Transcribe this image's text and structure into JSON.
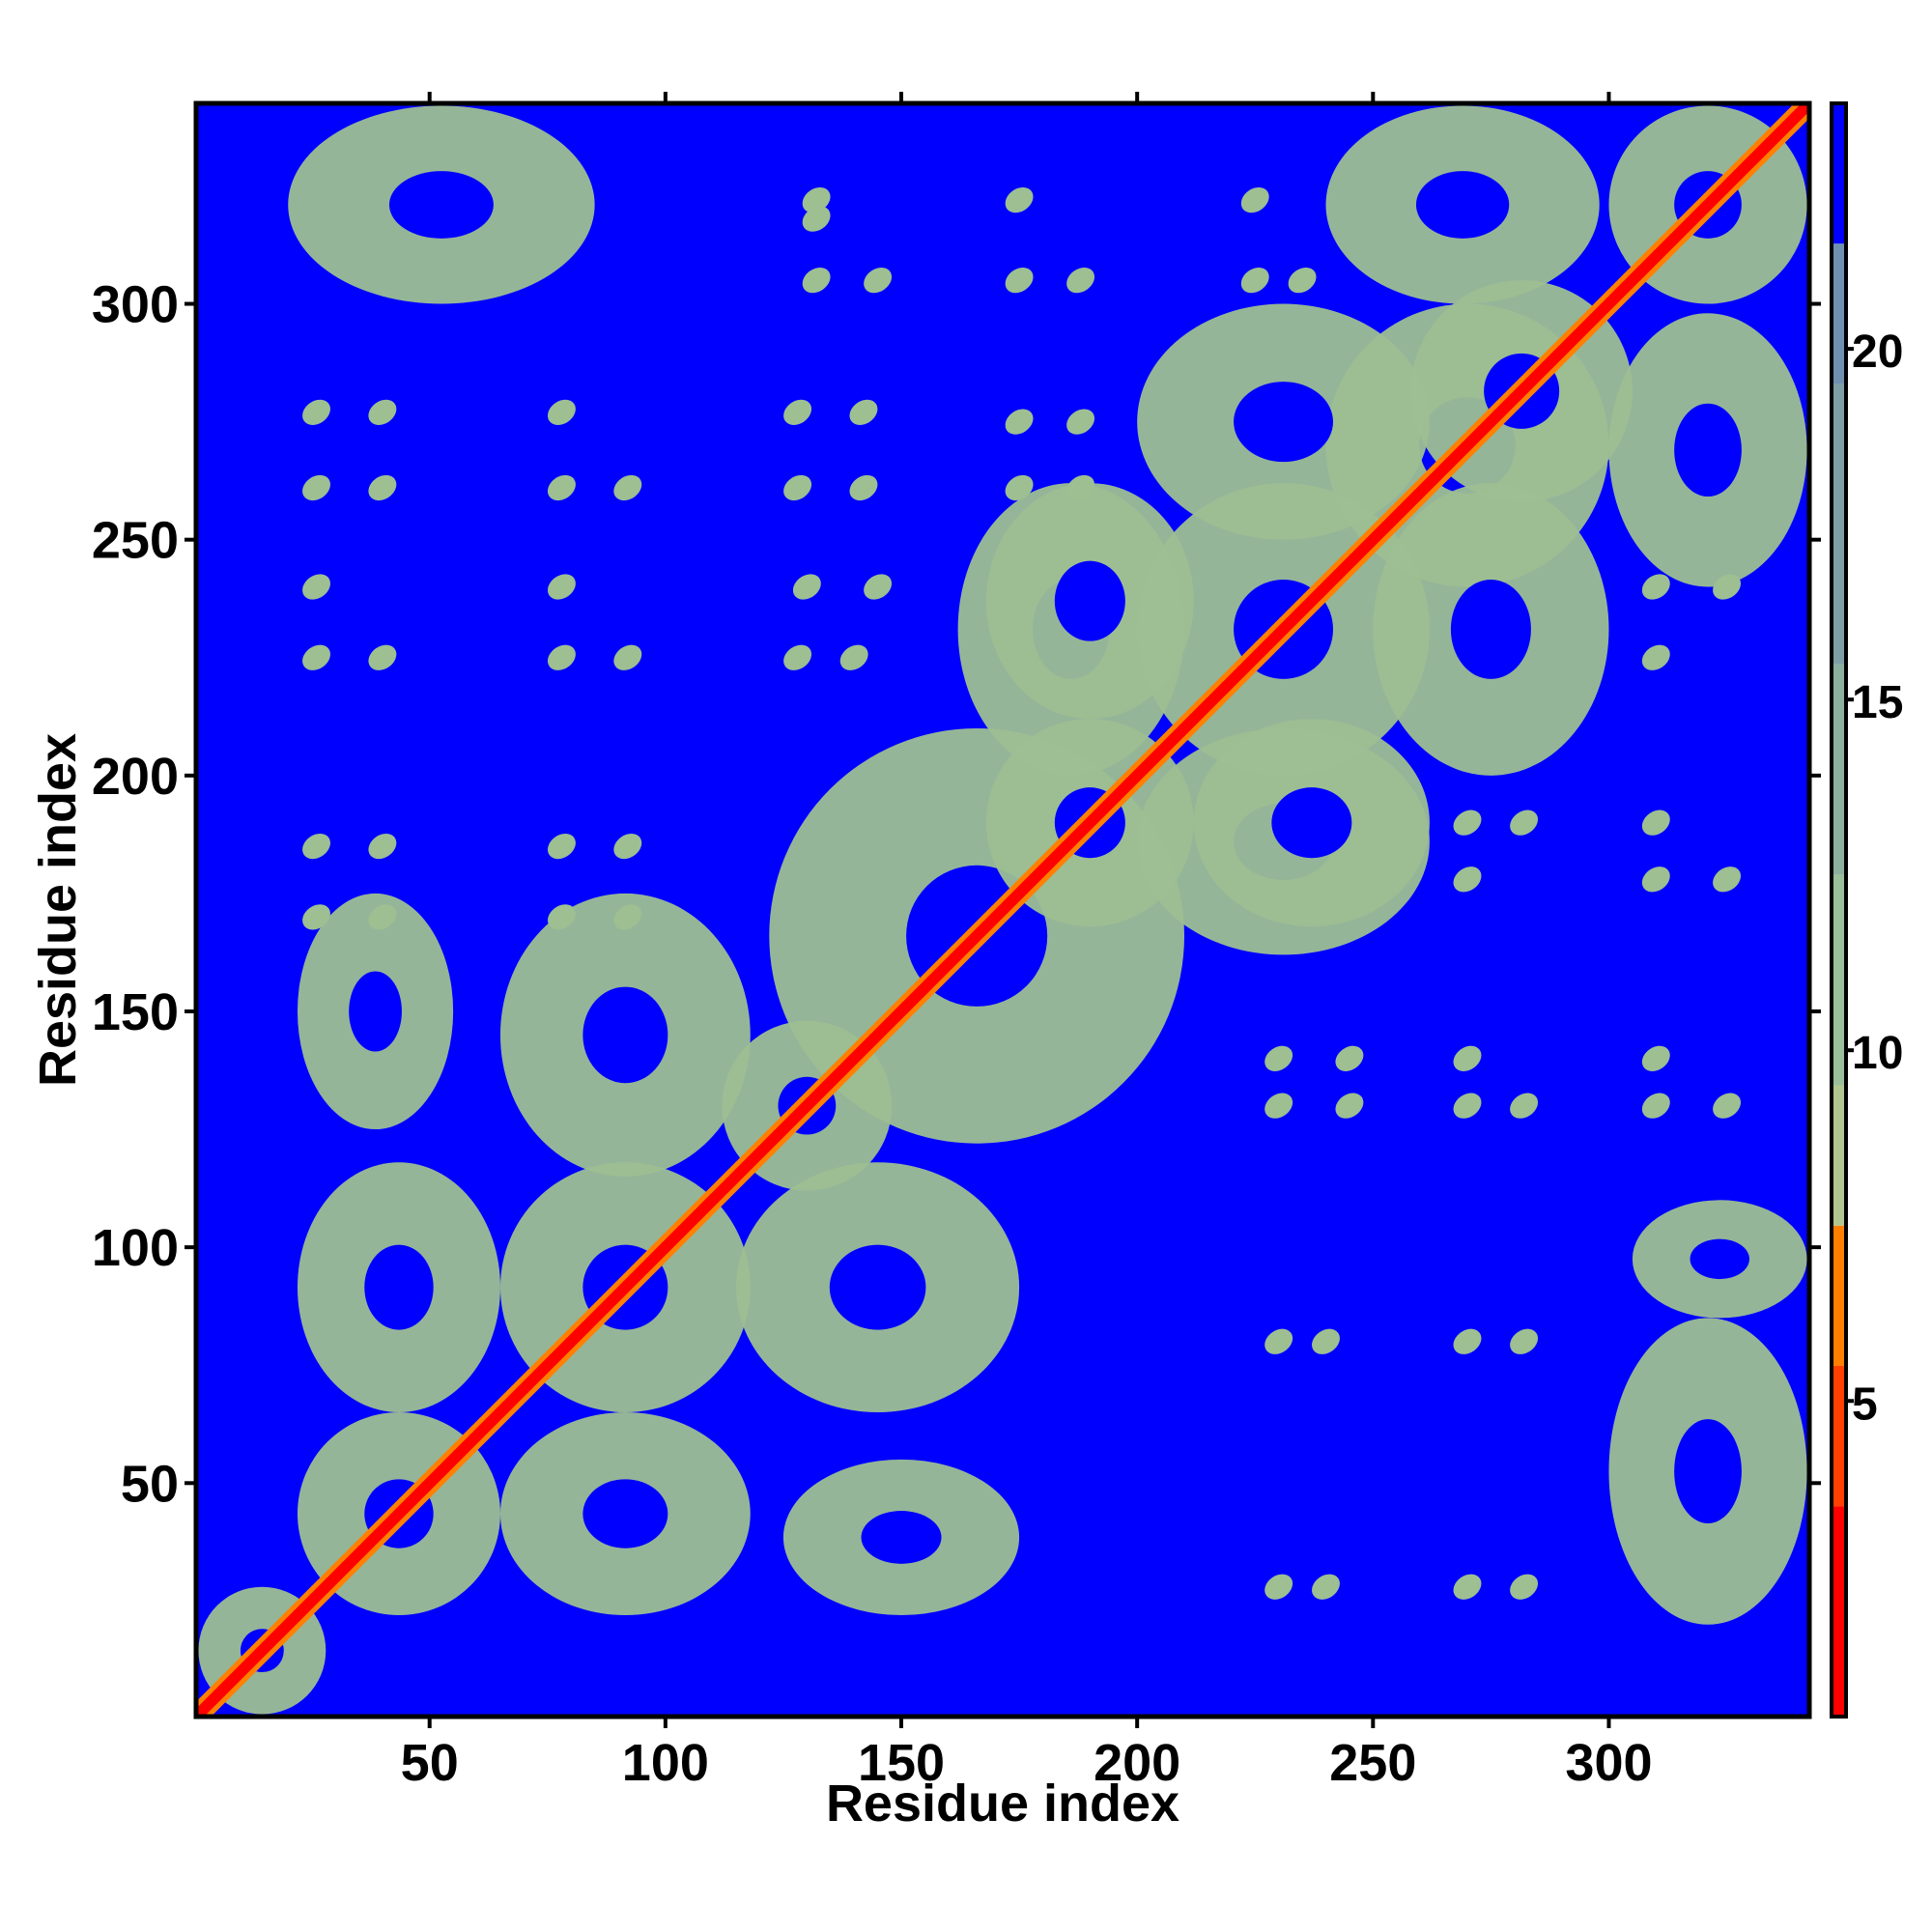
{
  "chart_data": {
    "type": "heatmap",
    "title": "",
    "xlabel": "Residue index",
    "ylabel": "Residue index",
    "xlim": [
      1,
      342
    ],
    "ylim": [
      1,
      342
    ],
    "x_ticks": [
      50,
      100,
      150,
      200,
      250,
      300
    ],
    "y_ticks": [
      50,
      100,
      150,
      200,
      250,
      300
    ],
    "grid": false,
    "colorbar": {
      "placement": "right",
      "range": [
        0.5,
        23.5
      ],
      "ticks": [
        5,
        10,
        15,
        20
      ],
      "colors": [
        {
          "from": 0.5,
          "to": 3.5,
          "color": "#ff0000"
        },
        {
          "from": 3.5,
          "to": 5.5,
          "color": "#ff4000"
        },
        {
          "from": 5.5,
          "to": 7.5,
          "color": "#ff8000"
        },
        {
          "from": 7.5,
          "to": 9.5,
          "color": "#b0c890"
        },
        {
          "from": 9.5,
          "to": 12.5,
          "color": "#9abf9a"
        },
        {
          "from": 12.5,
          "to": 15.5,
          "color": "#8cb09e"
        },
        {
          "from": 15.5,
          "to": 19.5,
          "color": "#7f9fa6"
        },
        {
          "from": 19.5,
          "to": 21.5,
          "color": "#6f90b0"
        },
        {
          "from": 21.5,
          "to": 23.5,
          "color": "#0000ff"
        }
      ]
    },
    "background_color": "#0000ff",
    "diagonal_color": "#ff0000",
    "contact_color": "#9dbf92",
    "center_color": "#0000ff",
    "blocks": [
      {
        "x": [
          1,
          28
        ],
        "y": [
          1,
          28
        ]
      },
      {
        "x": [
          22,
          65
        ],
        "y": [
          22,
          65
        ]
      },
      {
        "x": [
          65,
          118
        ],
        "y": [
          65,
          118
        ]
      },
      {
        "x": [
          112,
          148
        ],
        "y": [
          112,
          148
        ]
      },
      {
        "x": [
          122,
          210
        ],
        "y": [
          122,
          210
        ]
      },
      {
        "x": [
          168,
          212
        ],
        "y": [
          168,
          212
        ]
      },
      {
        "x": [
          200,
          262
        ],
        "y": [
          200,
          262
        ]
      },
      {
        "x": [
          240,
          300
        ],
        "y": [
          240,
          300
        ]
      },
      {
        "x": [
          258,
          305
        ],
        "y": [
          258,
          305
        ]
      },
      {
        "x": [
          300,
          342
        ],
        "y": [
          300,
          342
        ]
      },
      {
        "x": [
          65,
          118
        ],
        "y": [
          22,
          65
        ]
      },
      {
        "x": [
          22,
          65
        ],
        "y": [
          65,
          118
        ]
      },
      {
        "x": [
          115,
          175
        ],
        "y": [
          65,
          118
        ]
      },
      {
        "x": [
          65,
          118
        ],
        "y": [
          115,
          175
        ]
      },
      {
        "x": [
          22,
          55
        ],
        "y": [
          125,
          175
        ]
      },
      {
        "x": [
          125,
          175
        ],
        "y": [
          22,
          55
        ]
      },
      {
        "x": [
          200,
          262
        ],
        "y": [
          162,
          210
        ]
      },
      {
        "x": [
          162,
          210
        ],
        "y": [
          200,
          262
        ]
      },
      {
        "x": [
          168,
          212
        ],
        "y": [
          212,
          262
        ]
      },
      {
        "x": [
          212,
          262
        ],
        "y": [
          168,
          212
        ]
      },
      {
        "x": [
          200,
          262
        ],
        "y": [
          250,
          300
        ]
      },
      {
        "x": [
          250,
          300
        ],
        "y": [
          200,
          262
        ]
      },
      {
        "x": [
          300,
          342
        ],
        "y": [
          240,
          298
        ]
      },
      {
        "x": [
          240,
          298
        ],
        "y": [
          300,
          342
        ]
      },
      {
        "x": [
          20,
          85
        ],
        "y": [
          300,
          342
        ]
      },
      {
        "x": [
          300,
          342
        ],
        "y": [
          20,
          85
        ]
      },
      {
        "x": [
          305,
          342
        ],
        "y": [
          85,
          110
        ]
      }
    ],
    "spots": [
      {
        "x": 26,
        "y": 261
      },
      {
        "x": 26,
        "y": 277
      },
      {
        "x": 40,
        "y": 277
      },
      {
        "x": 40,
        "y": 261
      },
      {
        "x": 26,
        "y": 225
      },
      {
        "x": 26,
        "y": 240
      },
      {
        "x": 40,
        "y": 225
      },
      {
        "x": 26,
        "y": 170
      },
      {
        "x": 26,
        "y": 185
      },
      {
        "x": 40,
        "y": 170
      },
      {
        "x": 40,
        "y": 185
      },
      {
        "x": 78,
        "y": 261
      },
      {
        "x": 78,
        "y": 277
      },
      {
        "x": 92,
        "y": 261
      },
      {
        "x": 78,
        "y": 225
      },
      {
        "x": 78,
        "y": 240
      },
      {
        "x": 92,
        "y": 225
      },
      {
        "x": 78,
        "y": 170
      },
      {
        "x": 78,
        "y": 185
      },
      {
        "x": 92,
        "y": 170
      },
      {
        "x": 92,
        "y": 185
      },
      {
        "x": 132,
        "y": 305
      },
      {
        "x": 132,
        "y": 318
      },
      {
        "x": 145,
        "y": 305
      },
      {
        "x": 132,
        "y": 322
      },
      {
        "x": 128,
        "y": 261
      },
      {
        "x": 128,
        "y": 277
      },
      {
        "x": 142,
        "y": 261
      },
      {
        "x": 142,
        "y": 277
      },
      {
        "x": 128,
        "y": 225
      },
      {
        "x": 140,
        "y": 225
      },
      {
        "x": 130,
        "y": 240
      },
      {
        "x": 145,
        "y": 240
      },
      {
        "x": 175,
        "y": 305
      },
      {
        "x": 175,
        "y": 322
      },
      {
        "x": 188,
        "y": 305
      },
      {
        "x": 175,
        "y": 261
      },
      {
        "x": 175,
        "y": 275
      },
      {
        "x": 188,
        "y": 261
      },
      {
        "x": 188,
        "y": 275
      },
      {
        "x": 225,
        "y": 305
      },
      {
        "x": 225,
        "y": 322
      },
      {
        "x": 235,
        "y": 305
      },
      {
        "x": 230,
        "y": 140
      },
      {
        "x": 230,
        "y": 130
      },
      {
        "x": 245,
        "y": 140
      },
      {
        "x": 245,
        "y": 130
      },
      {
        "x": 230,
        "y": 80
      },
      {
        "x": 240,
        "y": 80
      },
      {
        "x": 230,
        "y": 28
      },
      {
        "x": 240,
        "y": 28
      },
      {
        "x": 270,
        "y": 140
      },
      {
        "x": 270,
        "y": 130
      },
      {
        "x": 282,
        "y": 130
      },
      {
        "x": 270,
        "y": 80
      },
      {
        "x": 282,
        "y": 80
      },
      {
        "x": 270,
        "y": 28
      },
      {
        "x": 282,
        "y": 28
      },
      {
        "x": 270,
        "y": 190
      },
      {
        "x": 270,
        "y": 178
      },
      {
        "x": 282,
        "y": 190
      },
      {
        "x": 310,
        "y": 140
      },
      {
        "x": 310,
        "y": 130
      },
      {
        "x": 325,
        "y": 130
      },
      {
        "x": 310,
        "y": 190
      },
      {
        "x": 310,
        "y": 178
      },
      {
        "x": 325,
        "y": 178
      },
      {
        "x": 310,
        "y": 240
      },
      {
        "x": 310,
        "y": 225
      },
      {
        "x": 325,
        "y": 240
      }
    ]
  }
}
